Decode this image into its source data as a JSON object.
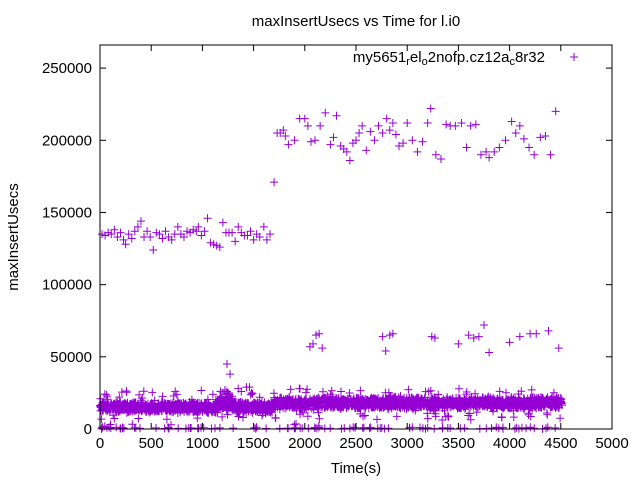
{
  "chart_data": {
    "type": "scatter",
    "title": "maxInsertUsecs vs Time for l.i0",
    "xlabel": "Time(s)",
    "ylabel": "maxInsertUsecs",
    "xlim": [
      0,
      5000
    ],
    "ylim": [
      0,
      266000
    ],
    "xticks": [
      0,
      500,
      1000,
      1500,
      2000,
      2500,
      3000,
      3500,
      4000,
      4500,
      5000
    ],
    "yticks": [
      0,
      50000,
      100000,
      150000,
      200000,
      250000
    ],
    "grid": false,
    "legend": {
      "placement": "top-right",
      "label_parts": [
        {
          "t": "my5651",
          "sub": false
        },
        {
          "t": "r",
          "sub": true
        },
        {
          "t": "el",
          "sub": false
        },
        {
          "t": "o",
          "sub": true
        },
        {
          "t": "2nofp.cz12a",
          "sub": false
        },
        {
          "t": "c",
          "sub": true
        },
        {
          "t": "8r32",
          "sub": false
        }
      ]
    },
    "series": [
      {
        "name": "my5651_rel_o2nofp.cz12a_c8r32",
        "color": "#9400d3",
        "points": [
          [
            20,
            135000
          ],
          [
            50,
            134000
          ],
          [
            80,
            136000
          ],
          [
            110,
            135000
          ],
          [
            140,
            138000
          ],
          [
            170,
            133000
          ],
          [
            200,
            136000
          ],
          [
            230,
            131000
          ],
          [
            250,
            128000
          ],
          [
            280,
            135000
          ],
          [
            310,
            132000
          ],
          [
            340,
            137000
          ],
          [
            370,
            140000
          ],
          [
            400,
            144000
          ],
          [
            430,
            133000
          ],
          [
            460,
            137000
          ],
          [
            490,
            133000
          ],
          [
            520,
            124000
          ],
          [
            550,
            136000
          ],
          [
            580,
            135000
          ],
          [
            610,
            132000
          ],
          [
            640,
            137000
          ],
          [
            670,
            133000
          ],
          [
            700,
            131000
          ],
          [
            730,
            135000
          ],
          [
            760,
            140000
          ],
          [
            790,
            135000
          ],
          [
            820,
            133000
          ],
          [
            850,
            137000
          ],
          [
            880,
            136000
          ],
          [
            910,
            138000
          ],
          [
            940,
            137000
          ],
          [
            960,
            140000
          ],
          [
            990,
            134000
          ],
          [
            1020,
            137000
          ],
          [
            1050,
            146000
          ],
          [
            1080,
            129000
          ],
          [
            1110,
            128000
          ],
          [
            1140,
            127000
          ],
          [
            1170,
            126000
          ],
          [
            1200,
            143000
          ],
          [
            1230,
            136000
          ],
          [
            1260,
            136000
          ],
          [
            1290,
            136000
          ],
          [
            1320,
            130000
          ],
          [
            1350,
            140000
          ],
          [
            1380,
            136000
          ],
          [
            1410,
            134000
          ],
          [
            1440,
            134000
          ],
          [
            1470,
            137000
          ],
          [
            1500,
            131000
          ],
          [
            1530,
            135000
          ],
          [
            1560,
            133000
          ],
          [
            1600,
            140000
          ],
          [
            1630,
            131000
          ],
          [
            1660,
            135000
          ],
          [
            1700,
            171000
          ],
          [
            1730,
            205000
          ],
          [
            1760,
            205000
          ],
          [
            1790,
            207000
          ],
          [
            1810,
            203000
          ],
          [
            1840,
            197000
          ],
          [
            1900,
            200000
          ],
          [
            1950,
            215000
          ],
          [
            2000,
            215000
          ],
          [
            2030,
            210000
          ],
          [
            2060,
            199000
          ],
          [
            2100,
            200000
          ],
          [
            2150,
            210000
          ],
          [
            2200,
            219000
          ],
          [
            2250,
            197000
          ],
          [
            2280,
            202000
          ],
          [
            2310,
            217000
          ],
          [
            2350,
            196000
          ],
          [
            2380,
            194000
          ],
          [
            2410,
            192000
          ],
          [
            2440,
            186000
          ],
          [
            2470,
            198000
          ],
          [
            2500,
            200000
          ],
          [
            2530,
            205000
          ],
          [
            2560,
            210000
          ],
          [
            2600,
            193000
          ],
          [
            2640,
            206000
          ],
          [
            2680,
            200000
          ],
          [
            2720,
            210000
          ],
          [
            2760,
            205000
          ],
          [
            2800,
            215000
          ],
          [
            2830,
            207000
          ],
          [
            2860,
            212000
          ],
          [
            2890,
            204000
          ],
          [
            2920,
            196000
          ],
          [
            2960,
            198000
          ],
          [
            3000,
            212000
          ],
          [
            3050,
            200000
          ],
          [
            3100,
            192000
          ],
          [
            3150,
            199000
          ],
          [
            3200,
            212000
          ],
          [
            3230,
            222000
          ],
          [
            3280,
            190000
          ],
          [
            3330,
            187000
          ],
          [
            3380,
            211000
          ],
          [
            3420,
            210000
          ],
          [
            3470,
            210000
          ],
          [
            3530,
            212000
          ],
          [
            3580,
            195000
          ],
          [
            3620,
            210000
          ],
          [
            3670,
            211000
          ],
          [
            3720,
            190000
          ],
          [
            3770,
            192000
          ],
          [
            3800,
            188000
          ],
          [
            3850,
            192000
          ],
          [
            3900,
            195000
          ],
          [
            3960,
            200000
          ],
          [
            4020,
            213000
          ],
          [
            4060,
            205000
          ],
          [
            4100,
            210000
          ],
          [
            4140,
            201000
          ],
          [
            4190,
            195000
          ],
          [
            4240,
            190000
          ],
          [
            4300,
            202000
          ],
          [
            4350,
            203000
          ],
          [
            4400,
            190000
          ],
          [
            4450,
            220000
          ],
          [
            1240,
            45000
          ],
          [
            1270,
            38000
          ],
          [
            2050,
            57000
          ],
          [
            2080,
            59000
          ],
          [
            2110,
            65000
          ],
          [
            2140,
            66000
          ],
          [
            2170,
            56000
          ],
          [
            2760,
            64000
          ],
          [
            2790,
            54000
          ],
          [
            2830,
            65000
          ],
          [
            2860,
            66000
          ],
          [
            3240,
            64000
          ],
          [
            3270,
            63000
          ],
          [
            3500,
            59000
          ],
          [
            3600,
            65000
          ],
          [
            3650,
            63000
          ],
          [
            3700,
            64000
          ],
          [
            3750,
            72000
          ],
          [
            3800,
            53000
          ],
          [
            4000,
            60000
          ],
          [
            4100,
            64000
          ],
          [
            4200,
            66000
          ],
          [
            4260,
            66000
          ],
          [
            4380,
            68000
          ],
          [
            4480,
            56000
          ],
          [
            1180,
            22000
          ],
          [
            1200,
            25000
          ],
          [
            1220,
            27000
          ],
          [
            1240,
            26000
          ],
          [
            1260,
            24000
          ],
          [
            1350,
            28000
          ],
          [
            1380,
            26000
          ],
          [
            1430,
            29000
          ],
          [
            1460,
            29000
          ],
          [
            1480,
            25000
          ]
        ],
        "dense_bands": [
          {
            "x_range": [
              0,
              1150
            ],
            "y_center": 15000,
            "y_spread": 4000,
            "outlier_range": [
              5000,
              27000
            ],
            "count": 700
          },
          {
            "x_range": [
              1150,
              1300
            ],
            "y_center": 18000,
            "y_spread": 6000,
            "outlier_range": [
              8000,
              28000
            ],
            "count": 120
          },
          {
            "x_range": [
              1300,
              1700
            ],
            "y_center": 15000,
            "y_spread": 4000,
            "outlier_range": [
              5000,
              25000
            ],
            "count": 250
          },
          {
            "x_range": [
              1700,
              4520
            ],
            "y_center": 18000,
            "y_spread": 4500,
            "outlier_range": [
              6000,
              28000
            ],
            "count": 1700
          },
          {
            "x_range": [
              0,
              4500
            ],
            "y_center": 700,
            "y_spread": 700,
            "outlier_range": [
              0,
              4000
            ],
            "count": 110
          }
        ]
      }
    ]
  }
}
